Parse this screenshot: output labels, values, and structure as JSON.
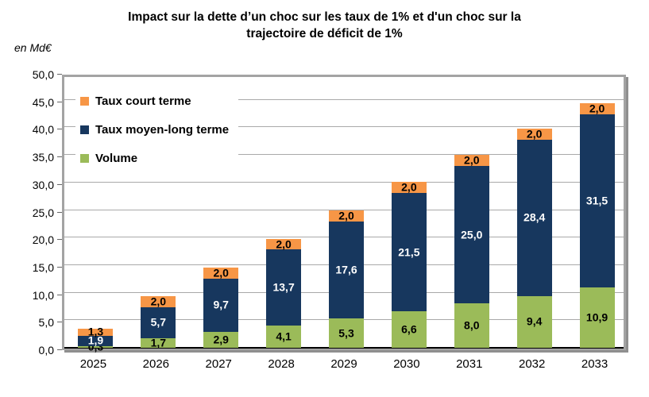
{
  "title_lines": [
    "Impact sur la dette d’un choc sur les taux de 1% et d'un choc sur la",
    "trajectoire de déficit de 1%"
  ],
  "unit_label": "en Md€",
  "legend": [
    {
      "name": "taux-court-terme",
      "label": "Taux court terme",
      "color": "#F79646"
    },
    {
      "name": "taux-moyen-long-terme",
      "label": "Taux moyen-long terme",
      "color": "#17375E"
    },
    {
      "name": "volume",
      "label": "Volume",
      "color": "#9BBB59"
    }
  ],
  "chart_data": {
    "type": "bar",
    "stacked": true,
    "title": "Impact sur la dette d’un choc sur les taux de 1% et d'un choc sur la trajectoire de déficit de 1%",
    "ylabel": "en Md€",
    "categories": [
      "2025",
      "2026",
      "2027",
      "2028",
      "2029",
      "2030",
      "2031",
      "2032",
      "2033"
    ],
    "series": [
      {
        "name": "Volume",
        "color": "#9BBB59",
        "label_color": "#000000",
        "values": [
          0.3,
          1.7,
          2.9,
          4.1,
          5.3,
          6.6,
          8.0,
          9.4,
          10.9
        ],
        "labels": [
          "0,3",
          "1,7",
          "2,9",
          "4,1",
          "5,3",
          "6,6",
          "8,0",
          "9,4",
          "10,9"
        ]
      },
      {
        "name": "Taux moyen-long terme",
        "color": "#17375E",
        "label_color": "#FFFFFF",
        "values": [
          1.9,
          5.7,
          9.7,
          13.7,
          17.6,
          21.5,
          25.0,
          28.4,
          31.5
        ],
        "labels": [
          "1,9",
          "5,7",
          "9,7",
          "13,7",
          "17,6",
          "21,5",
          "25,0",
          "28,4",
          "31,5"
        ]
      },
      {
        "name": "Taux court terme",
        "color": "#F79646",
        "label_color": "#000000",
        "values": [
          1.3,
          2.0,
          2.0,
          2.0,
          2.0,
          2.0,
          2.0,
          2.0,
          2.0
        ],
        "labels": [
          "1,3",
          "2,0",
          "2,0",
          "2,0",
          "2,0",
          "2,0",
          "2,0",
          "2,0",
          "2,0"
        ]
      }
    ],
    "y_axis": {
      "min": 0,
      "max": 50,
      "step": 5,
      "tick_labels": [
        "0,0",
        "5,0",
        "10,0",
        "15,0",
        "20,0",
        "25,0",
        "30,0",
        "35,0",
        "40,0",
        "45,0",
        "50,0"
      ]
    },
    "grid": true,
    "legend_position": "top-left-inside"
  }
}
